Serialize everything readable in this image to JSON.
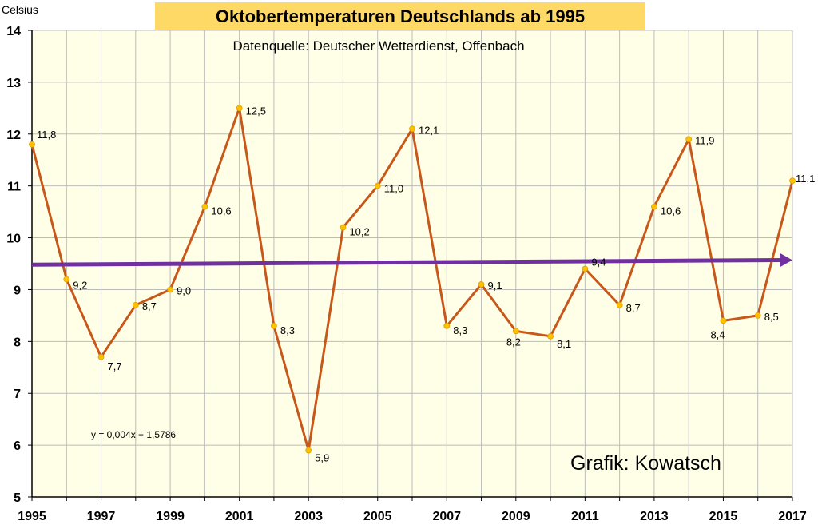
{
  "chart_data": {
    "type": "line",
    "title": "Oktobertemperaturen Deutschlands ab 1995",
    "subtitle": "Datenquelle: Deutscher Wetterdienst, Offenbach",
    "ylabel": "Celsius",
    "xlabel": "",
    "x": [
      1995,
      1996,
      1997,
      1998,
      1999,
      2000,
      2001,
      2002,
      2003,
      2004,
      2005,
      2006,
      2007,
      2008,
      2009,
      2010,
      2011,
      2012,
      2013,
      2014,
      2015,
      2016,
      2017
    ],
    "x_ticks": [
      "1995",
      "1997",
      "1999",
      "2001",
      "2003",
      "2005",
      "2007",
      "2009",
      "2011",
      "2013",
      "2015",
      "2017"
    ],
    "y_ticks": [
      "5",
      "6",
      "7",
      "8",
      "9",
      "10",
      "11",
      "12",
      "13",
      "14"
    ],
    "ylim": [
      5,
      14
    ],
    "xlim": [
      1995,
      2017
    ],
    "grid": true,
    "series": [
      {
        "name": "Oktobertemperatur",
        "color": "#C8571A",
        "marker_color": "#FFC000",
        "values": [
          11.8,
          9.2,
          7.7,
          8.7,
          9.0,
          10.6,
          12.5,
          8.3,
          5.9,
          10.2,
          11.0,
          12.1,
          8.3,
          9.1,
          8.2,
          8.1,
          9.4,
          8.7,
          10.6,
          11.9,
          8.4,
          8.5,
          11.1
        ],
        "labels": [
          "11,8",
          "9,2",
          "7,7",
          "8,7",
          "9,0",
          "10,6",
          "12,5",
          "8,3",
          "5,9",
          "10,2",
          "11,0",
          "12,1",
          "8,3",
          "9,1",
          "8,2",
          "8,1",
          "9,4",
          "8,7",
          "10,6",
          "11,9",
          "8,4",
          "8,5",
          "11,1"
        ]
      }
    ],
    "trendline": {
      "equation": "y = 0,004x + 1,5786",
      "start": [
        1995,
        9.48
      ],
      "end": [
        2017,
        9.57
      ],
      "color": "#7030A0"
    },
    "credit": "Grafik: Kowatsch",
    "plot_background": "#FFFFE8",
    "title_background": "#FFD966",
    "grid_color": "#BBBBBB"
  }
}
